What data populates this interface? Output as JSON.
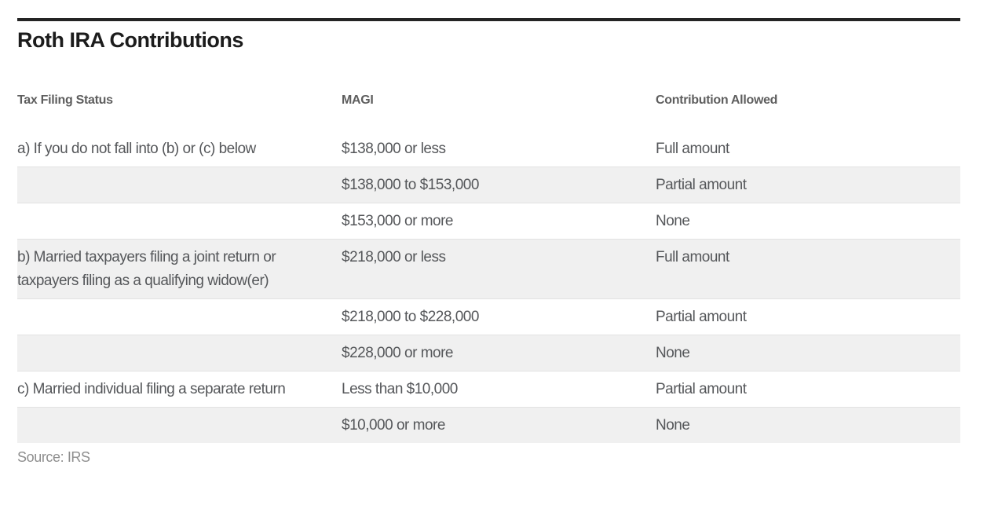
{
  "title": "Roth IRA Contributions",
  "source_note": "Source: IRS",
  "chart_data": {
    "type": "table",
    "title": "Roth IRA Contributions",
    "columns": [
      "Tax Filing Status",
      "MAGI",
      "Contribution Allowed"
    ],
    "rows": [
      [
        "a) If you do not fall into (b) or (c) below",
        "$138,000 or less",
        "Full amount"
      ],
      [
        "",
        "$138,000 to $153,000",
        "Partial amount"
      ],
      [
        "",
        "$153,000 or more",
        "None"
      ],
      [
        "b) Married taxpayers filing a joint return or taxpayers filing as a qualifying widow(er)",
        "$218,000 or less",
        "Full amount"
      ],
      [
        "",
        "$218,000 to $228,000",
        "Partial amount"
      ],
      [
        "",
        "$228,000 or more",
        "None"
      ],
      [
        "c) Married individual filing a separate return",
        "Less than $10,000",
        "Partial amount"
      ],
      [
        "",
        "$10,000 or more",
        "None"
      ]
    ],
    "source": "Source: IRS",
    "layout": {
      "zebra_striping": true,
      "shaded_row_indexes": [
        1,
        3,
        5,
        7
      ],
      "grid": "horizontal-row-dividers-only",
      "header_style": "bold-gray-no-background"
    }
  },
  "colors": {
    "top_rule": "#242424",
    "title_text": "#1c1c1c",
    "header_text": "#5e5e5e",
    "body_text": "#55575a",
    "row_shade": "#f0f0f0",
    "row_divider": "#e2e2e2",
    "source_text": "#8e8e8e",
    "background": "#ffffff"
  }
}
